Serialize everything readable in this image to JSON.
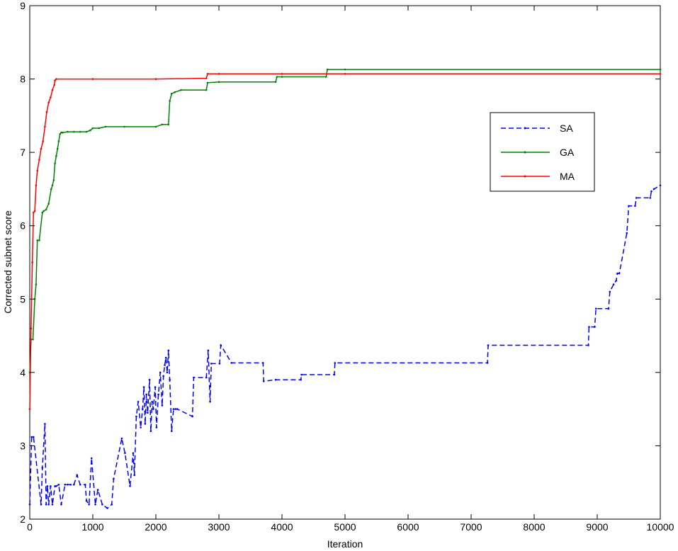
{
  "chart_data": {
    "type": "line",
    "xlabel": "Iteration",
    "ylabel": "Corrected subnet score",
    "xlim": [
      0,
      10000
    ],
    "ylim": [
      2,
      9
    ],
    "xticks": [
      0,
      1000,
      2000,
      3000,
      4000,
      5000,
      6000,
      7000,
      8000,
      9000,
      10000
    ],
    "yticks": [
      2,
      3,
      4,
      5,
      6,
      7,
      8,
      9
    ],
    "grid": false,
    "legend_position": "right",
    "series": [
      {
        "name": "SA",
        "color": "#0000ff",
        "style": "dashed",
        "x": [
          0,
          30,
          60,
          180,
          200,
          240,
          260,
          280,
          300,
          330,
          360,
          400,
          420,
          460,
          500,
          560,
          600,
          650,
          700,
          750,
          800,
          880,
          900,
          940,
          980,
          1040,
          1080,
          1150,
          1230,
          1300,
          1330,
          1460,
          1510,
          1590,
          1640,
          1660,
          1690,
          1720,
          1760,
          1790,
          1810,
          1830,
          1850,
          1870,
          1900,
          1920,
          1940,
          1960,
          1990,
          2010,
          2040,
          2070,
          2100,
          2120,
          2140,
          2160,
          2180,
          2200,
          2220,
          2250,
          2280,
          2310,
          2340,
          2580,
          2600,
          2800,
          2830,
          2860,
          2880,
          3010,
          3030,
          3200,
          3700,
          3710,
          3900,
          4300,
          4310,
          4830,
          4840,
          7260,
          7270,
          8860,
          8870,
          8960,
          8980,
          9180,
          9200,
          9260,
          9300,
          9320,
          9350,
          9470,
          9500,
          9600,
          9620,
          9840,
          9860,
          9900,
          10000
        ],
        "y": [
          2.2,
          3.12,
          3.12,
          2.2,
          2.7,
          3.3,
          2.2,
          2.45,
          2.2,
          2.45,
          2.2,
          2.45,
          2.45,
          2.47,
          2.2,
          2.47,
          2.47,
          2.47,
          2.47,
          2.6,
          2.47,
          2.47,
          2.25,
          2.2,
          2.83,
          2.2,
          2.4,
          2.2,
          2.15,
          2.2,
          2.55,
          3.1,
          2.9,
          2.45,
          2.9,
          2.6,
          3.4,
          3.6,
          3.25,
          3.5,
          3.8,
          3.3,
          3.7,
          3.45,
          3.9,
          3.2,
          3.6,
          3.5,
          3.8,
          3.25,
          3.7,
          4.0,
          3.55,
          3.95,
          4.1,
          4.2,
          4.0,
          4.3,
          3.9,
          3.2,
          3.5,
          3.5,
          3.5,
          3.4,
          3.93,
          3.93,
          4.3,
          3.6,
          4.12,
          4.12,
          4.37,
          4.13,
          4.13,
          3.88,
          3.9,
          3.9,
          3.97,
          3.97,
          4.13,
          4.13,
          4.37,
          4.37,
          4.62,
          4.62,
          4.87,
          4.87,
          5.1,
          5.2,
          5.25,
          5.35,
          5.35,
          5.9,
          6.27,
          6.27,
          6.38,
          6.38,
          6.47,
          6.5,
          6.55
        ]
      },
      {
        "name": "GA",
        "color": "#008000",
        "style": "solid",
        "x": [
          0,
          20,
          50,
          80,
          100,
          120,
          150,
          200,
          220,
          260,
          300,
          340,
          360,
          380,
          400,
          420,
          440,
          460,
          480,
          500,
          520,
          600,
          700,
          800,
          900,
          960,
          1000,
          1100,
          1200,
          1500,
          2000,
          2100,
          2200,
          2220,
          2250,
          2300,
          2400,
          2800,
          2820,
          3000,
          3900,
          3920,
          4000,
          4700,
          4720,
          5000,
          10000
        ],
        "y": [
          4.0,
          4.45,
          4.45,
          5.0,
          5.2,
          5.8,
          5.8,
          6.18,
          6.2,
          6.22,
          6.3,
          6.5,
          6.55,
          6.62,
          6.85,
          6.95,
          7.05,
          7.15,
          7.25,
          7.27,
          7.27,
          7.28,
          7.28,
          7.28,
          7.28,
          7.3,
          7.33,
          7.33,
          7.35,
          7.35,
          7.35,
          7.38,
          7.38,
          7.7,
          7.8,
          7.82,
          7.85,
          7.85,
          7.95,
          7.96,
          7.96,
          8.03,
          8.03,
          8.03,
          8.13,
          8.13,
          8.13
        ]
      },
      {
        "name": "MA",
        "color": "#ff0000",
        "style": "solid",
        "x": [
          0,
          20,
          40,
          60,
          80,
          100,
          120,
          150,
          180,
          210,
          240,
          270,
          300,
          330,
          360,
          390,
          400,
          420,
          1000,
          2000,
          2800,
          2820,
          3000,
          4000,
          5000,
          10000
        ],
        "y": [
          3.5,
          4.6,
          5.5,
          6.18,
          6.2,
          6.55,
          6.75,
          6.9,
          7.05,
          7.15,
          7.35,
          7.55,
          7.68,
          7.75,
          7.85,
          7.92,
          7.98,
          8.0,
          8.0,
          8.0,
          8.01,
          8.07,
          8.07,
          8.07,
          8.07,
          8.07
        ]
      }
    ]
  }
}
